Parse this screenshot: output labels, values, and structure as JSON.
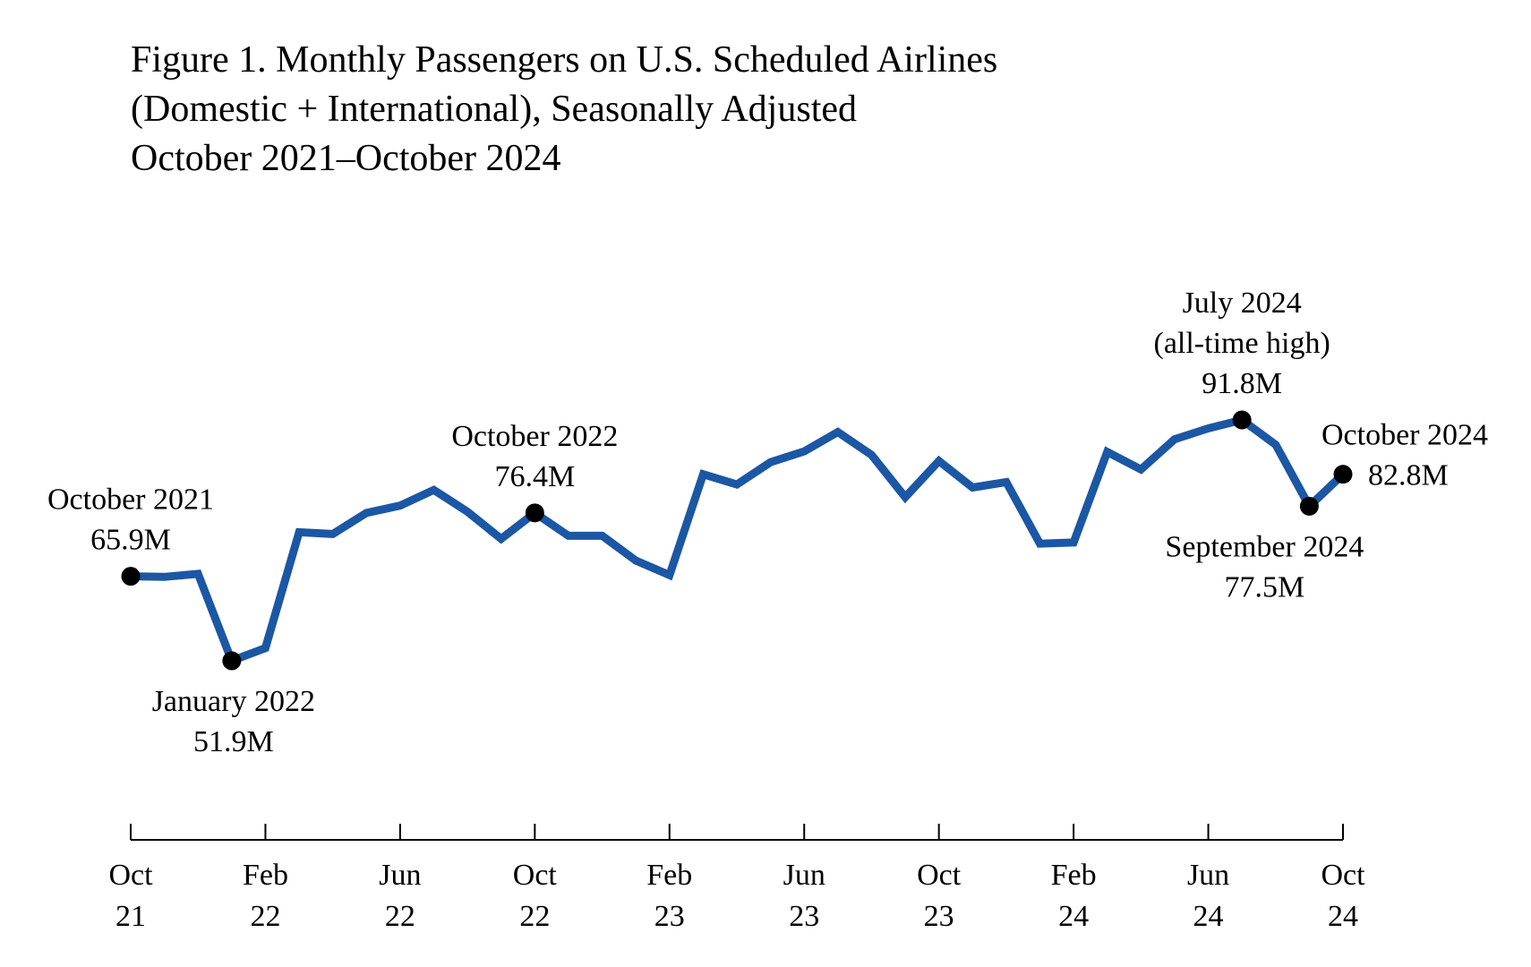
{
  "chart_data": {
    "type": "line",
    "title": [
      "Figure 1. Monthly Passengers on U.S. Scheduled Airlines",
      "(Domestic + International), Seasonally Adjusted",
      "October 2021–October 2024"
    ],
    "xlabel": "",
    "ylabel": "",
    "grid": false,
    "legend": "none",
    "ylim": [
      25,
      105
    ],
    "series": [
      {
        "name": "Monthly Passengers (millions)",
        "color": "#1b57a4",
        "x": [
          "Oct 21",
          "Nov 21",
          "Dec 21",
          "Jan 22",
          "Feb 22",
          "Mar 22",
          "Apr 22",
          "May 22",
          "Jun 22",
          "Jul 22",
          "Aug 22",
          "Sep 22",
          "Oct 22",
          "Nov 22",
          "Dec 22",
          "Jan 23",
          "Feb 23",
          "Mar 23",
          "Apr 23",
          "May 23",
          "Jun 23",
          "Jul 23",
          "Aug 23",
          "Sep 23",
          "Oct 23",
          "Nov 23",
          "Dec 23",
          "Jan 24",
          "Feb 24",
          "Mar 24",
          "Apr 24",
          "May 24",
          "Jun 24",
          "Jul 24",
          "Aug 24",
          "Sep 24",
          "Oct 24"
        ],
        "values": [
          65.9,
          65.8,
          66.3,
          51.9,
          54.0,
          73.2,
          72.9,
          76.4,
          77.6,
          80.2,
          76.6,
          72.1,
          76.4,
          72.6,
          72.6,
          68.5,
          66.1,
          82.8,
          81.1,
          84.8,
          86.6,
          89.8,
          86.0,
          79.0,
          85.0,
          80.6,
          81.5,
          71.3,
          71.5,
          86.5,
          83.6,
          88.6,
          90.4,
          91.8,
          87.7,
          77.5,
          82.8
        ]
      }
    ],
    "x_ticks": [
      {
        "month": "Oct",
        "year": "21",
        "index": 0
      },
      {
        "month": "Feb",
        "year": "22",
        "index": 4
      },
      {
        "month": "Jun",
        "year": "22",
        "index": 8
      },
      {
        "month": "Oct",
        "year": "22",
        "index": 12
      },
      {
        "month": "Feb",
        "year": "23",
        "index": 16
      },
      {
        "month": "Jun",
        "year": "23",
        "index": 20
      },
      {
        "month": "Oct",
        "year": "23",
        "index": 24
      },
      {
        "month": "Feb",
        "year": "24",
        "index": 28
      },
      {
        "month": "Jun",
        "year": "24",
        "index": 32
      },
      {
        "month": "Oct",
        "year": "24",
        "index": 36
      }
    ],
    "annotations": [
      {
        "name": "oct-2021",
        "index": 0,
        "lines": [
          "October 2021",
          "65.9M"
        ],
        "placement": "above"
      },
      {
        "name": "jan-2022",
        "index": 3,
        "lines": [
          "January 2022",
          "51.9M"
        ],
        "placement": "below"
      },
      {
        "name": "oct-2022",
        "index": 12,
        "lines": [
          "October 2022",
          "76.4M"
        ],
        "placement": "above"
      },
      {
        "name": "jul-2024",
        "index": 33,
        "lines": [
          "July 2024",
          "(all-time high)",
          "91.8M"
        ],
        "placement": "above"
      },
      {
        "name": "sep-2024",
        "index": 35,
        "lines": [
          "September 2024",
          "77.5M"
        ],
        "placement": "below"
      },
      {
        "name": "oct-2024",
        "index": 36,
        "lines": [
          "October 2024",
          "82.8M"
        ],
        "placement": "above-right"
      }
    ],
    "marker_color": "#000000"
  }
}
